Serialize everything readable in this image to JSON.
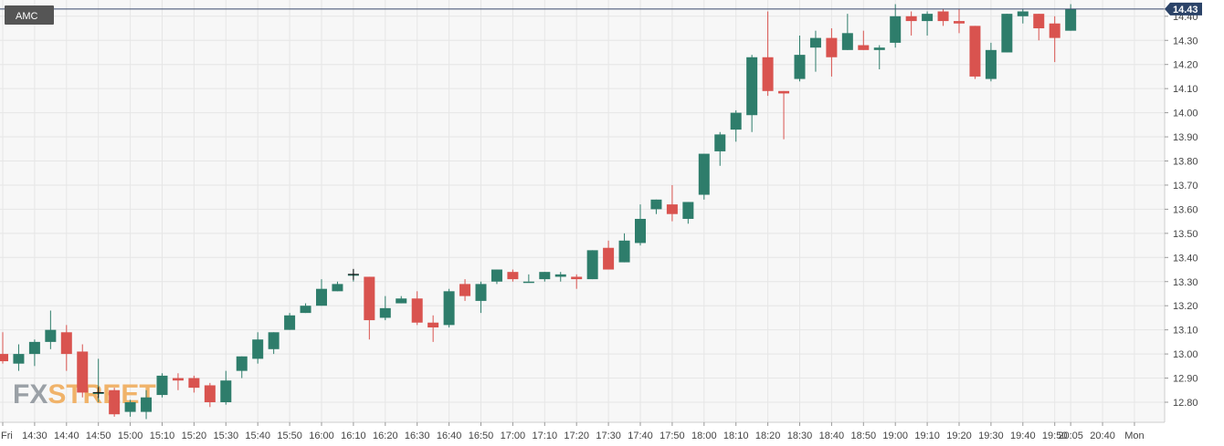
{
  "colors": {
    "up": "#2e7d6b",
    "down": "#d9534f",
    "grid": "#e6e6e6",
    "background": "#f7f7f7",
    "last_price_line": "#3a4a6b",
    "last_price_badge": "#2b4368",
    "symbol_badge": "#555555"
  },
  "watermark": {
    "part1": "FX",
    "part2": "STREET"
  },
  "chart_data": {
    "type": "candlestick",
    "symbol": "AMC",
    "last_price": 14.43,
    "last_price_label": "14.43",
    "ylim": [
      12.72,
      14.47
    ],
    "y_ticks": [
      {
        "value": 12.8,
        "label": "12.80"
      },
      {
        "value": 12.9,
        "label": "12.90"
      },
      {
        "value": 13.0,
        "label": "13.00"
      },
      {
        "value": 13.1,
        "label": "13.10"
      },
      {
        "value": 13.2,
        "label": "13.20"
      },
      {
        "value": 13.3,
        "label": "13.30"
      },
      {
        "value": 13.4,
        "label": "13.40"
      },
      {
        "value": 13.5,
        "label": "13.50"
      },
      {
        "value": 13.6,
        "label": "13.60"
      },
      {
        "value": 13.7,
        "label": "13.70"
      },
      {
        "value": 13.8,
        "label": "13.80"
      },
      {
        "value": 13.9,
        "label": "13.90"
      },
      {
        "value": 14.0,
        "label": "14.00"
      },
      {
        "value": 14.1,
        "label": "14.10"
      },
      {
        "value": 14.2,
        "label": "14.20"
      },
      {
        "value": 14.3,
        "label": "14.30"
      },
      {
        "value": 14.4,
        "label": "14.40"
      }
    ],
    "x_ticks": [
      {
        "slot": 0,
        "label": "Fri"
      },
      {
        "slot": 2,
        "label": "14:30"
      },
      {
        "slot": 4,
        "label": "14:40"
      },
      {
        "slot": 6,
        "label": "14:50"
      },
      {
        "slot": 8,
        "label": "15:00"
      },
      {
        "slot": 10,
        "label": "15:10"
      },
      {
        "slot": 12,
        "label": "15:20"
      },
      {
        "slot": 14,
        "label": "15:30"
      },
      {
        "slot": 16,
        "label": "15:40"
      },
      {
        "slot": 18,
        "label": "15:50"
      },
      {
        "slot": 20,
        "label": "16:00"
      },
      {
        "slot": 22,
        "label": "16:10"
      },
      {
        "slot": 24,
        "label": "16:20"
      },
      {
        "slot": 26,
        "label": "16:30"
      },
      {
        "slot": 28,
        "label": "16:40"
      },
      {
        "slot": 30,
        "label": "16:50"
      },
      {
        "slot": 32,
        "label": "17:00"
      },
      {
        "slot": 34,
        "label": "17:10"
      },
      {
        "slot": 36,
        "label": "17:20"
      },
      {
        "slot": 38,
        "label": "17:30"
      },
      {
        "slot": 40,
        "label": "17:40"
      },
      {
        "slot": 42,
        "label": "17:50"
      },
      {
        "slot": 44,
        "label": "18:00"
      },
      {
        "slot": 46,
        "label": "18:10"
      },
      {
        "slot": 48,
        "label": "18:20"
      },
      {
        "slot": 50,
        "label": "18:30"
      },
      {
        "slot": 52,
        "label": "18:40"
      },
      {
        "slot": 54,
        "label": "18:50"
      },
      {
        "slot": 56,
        "label": "19:00"
      },
      {
        "slot": 58,
        "label": "19:10"
      },
      {
        "slot": 60,
        "label": "19:20"
      },
      {
        "slot": 62,
        "label": "19:30"
      },
      {
        "slot": 64,
        "label": "19:40"
      },
      {
        "slot": 66,
        "label": "19:50"
      },
      {
        "slot": 67,
        "label": "20:05"
      },
      {
        "slot": 69,
        "label": "20:40"
      },
      {
        "slot": 71,
        "label": "Mon"
      }
    ],
    "candles": [
      {
        "slot": 0,
        "o": 13.0,
        "h": 13.09,
        "l": 12.96,
        "c": 12.97
      },
      {
        "slot": 1,
        "o": 12.96,
        "h": 13.04,
        "l": 12.93,
        "c": 13.0
      },
      {
        "slot": 2,
        "o": 13.0,
        "h": 13.06,
        "l": 12.95,
        "c": 13.05
      },
      {
        "slot": 3,
        "o": 13.05,
        "h": 13.18,
        "l": 13.02,
        "c": 13.1
      },
      {
        "slot": 4,
        "o": 13.09,
        "h": 13.12,
        "l": 12.93,
        "c": 13.0
      },
      {
        "slot": 5,
        "o": 13.01,
        "h": 13.04,
        "l": 12.82,
        "c": 12.84
      },
      {
        "slot": 6,
        "o": 12.84,
        "h": 12.98,
        "l": 12.8,
        "c": 12.84
      },
      {
        "slot": 7,
        "o": 12.85,
        "h": 12.86,
        "l": 12.74,
        "c": 12.75
      },
      {
        "slot": 8,
        "o": 12.76,
        "h": 12.81,
        "l": 12.74,
        "c": 12.8
      },
      {
        "slot": 9,
        "o": 12.76,
        "h": 12.85,
        "l": 12.73,
        "c": 12.82
      },
      {
        "slot": 10,
        "o": 12.83,
        "h": 12.92,
        "l": 12.82,
        "c": 12.91
      },
      {
        "slot": 11,
        "o": 12.9,
        "h": 12.92,
        "l": 12.85,
        "c": 12.89
      },
      {
        "slot": 12,
        "o": 12.9,
        "h": 12.91,
        "l": 12.84,
        "c": 12.86
      },
      {
        "slot": 13,
        "o": 12.87,
        "h": 12.88,
        "l": 12.78,
        "c": 12.8
      },
      {
        "slot": 14,
        "o": 12.8,
        "h": 12.93,
        "l": 12.79,
        "c": 12.89
      },
      {
        "slot": 15,
        "o": 12.93,
        "h": 12.99,
        "l": 12.9,
        "c": 12.99
      },
      {
        "slot": 16,
        "o": 12.98,
        "h": 13.09,
        "l": 12.96,
        "c": 13.06
      },
      {
        "slot": 17,
        "o": 13.02,
        "h": 13.09,
        "l": 13.0,
        "c": 13.09
      },
      {
        "slot": 18,
        "o": 13.1,
        "h": 13.17,
        "l": 13.1,
        "c": 13.16
      },
      {
        "slot": 19,
        "o": 13.17,
        "h": 13.21,
        "l": 13.17,
        "c": 13.2
      },
      {
        "slot": 20,
        "o": 13.2,
        "h": 13.31,
        "l": 13.2,
        "c": 13.27
      },
      {
        "slot": 21,
        "o": 13.26,
        "h": 13.3,
        "l": 13.26,
        "c": 13.29
      },
      {
        "slot": 22,
        "o": 13.33,
        "h": 13.35,
        "l": 13.3,
        "c": 13.33
      },
      {
        "slot": 23,
        "o": 13.32,
        "h": 13.32,
        "l": 13.06,
        "c": 13.14
      },
      {
        "slot": 24,
        "o": 13.15,
        "h": 13.24,
        "l": 13.14,
        "c": 13.19
      },
      {
        "slot": 25,
        "o": 13.21,
        "h": 13.24,
        "l": 13.21,
        "c": 13.23
      },
      {
        "slot": 26,
        "o": 13.23,
        "h": 13.26,
        "l": 13.12,
        "c": 13.13
      },
      {
        "slot": 27,
        "o": 13.13,
        "h": 13.16,
        "l": 13.05,
        "c": 13.11
      },
      {
        "slot": 28,
        "o": 13.12,
        "h": 13.27,
        "l": 13.11,
        "c": 13.26
      },
      {
        "slot": 29,
        "o": 13.29,
        "h": 13.31,
        "l": 13.22,
        "c": 13.24
      },
      {
        "slot": 30,
        "o": 13.22,
        "h": 13.3,
        "l": 13.17,
        "c": 13.29
      },
      {
        "slot": 31,
        "o": 13.3,
        "h": 13.35,
        "l": 13.29,
        "c": 13.35
      },
      {
        "slot": 32,
        "o": 13.34,
        "h": 13.35,
        "l": 13.3,
        "c": 13.31
      },
      {
        "slot": 33,
        "o": 13.3,
        "h": 13.33,
        "l": 13.3,
        "c": 13.3
      },
      {
        "slot": 34,
        "o": 13.31,
        "h": 13.34,
        "l": 13.3,
        "c": 13.34
      },
      {
        "slot": 35,
        "o": 13.32,
        "h": 13.34,
        "l": 13.3,
        "c": 13.33
      },
      {
        "slot": 36,
        "o": 13.32,
        "h": 13.33,
        "l": 13.27,
        "c": 13.31
      },
      {
        "slot": 37,
        "o": 13.31,
        "h": 13.43,
        "l": 13.31,
        "c": 13.43
      },
      {
        "slot": 38,
        "o": 13.44,
        "h": 13.47,
        "l": 13.35,
        "c": 13.35
      },
      {
        "slot": 39,
        "o": 13.38,
        "h": 13.5,
        "l": 13.38,
        "c": 13.47
      },
      {
        "slot": 40,
        "o": 13.46,
        "h": 13.62,
        "l": 13.45,
        "c": 13.56
      },
      {
        "slot": 41,
        "o": 13.6,
        "h": 13.64,
        "l": 13.58,
        "c": 13.64
      },
      {
        "slot": 42,
        "o": 13.62,
        "h": 13.7,
        "l": 13.55,
        "c": 13.58
      },
      {
        "slot": 43,
        "o": 13.56,
        "h": 13.63,
        "l": 13.54,
        "c": 13.63
      },
      {
        "slot": 44,
        "o": 13.66,
        "h": 13.83,
        "l": 13.64,
        "c": 13.83
      },
      {
        "slot": 45,
        "o": 13.84,
        "h": 13.92,
        "l": 13.78,
        "c": 13.91
      },
      {
        "slot": 46,
        "o": 13.93,
        "h": 14.01,
        "l": 13.88,
        "c": 14.0
      },
      {
        "slot": 47,
        "o": 13.99,
        "h": 14.24,
        "l": 13.92,
        "c": 14.23
      },
      {
        "slot": 48,
        "o": 14.23,
        "h": 14.42,
        "l": 14.07,
        "c": 14.09
      },
      {
        "slot": 49,
        "o": 14.09,
        "h": 14.09,
        "l": 13.89,
        "c": 14.08
      },
      {
        "slot": 50,
        "o": 14.14,
        "h": 14.32,
        "l": 14.13,
        "c": 14.24
      },
      {
        "slot": 51,
        "o": 14.27,
        "h": 14.34,
        "l": 14.17,
        "c": 14.31
      },
      {
        "slot": 52,
        "o": 14.31,
        "h": 14.35,
        "l": 14.15,
        "c": 14.23
      },
      {
        "slot": 53,
        "o": 14.26,
        "h": 14.41,
        "l": 14.26,
        "c": 14.33
      },
      {
        "slot": 54,
        "o": 14.28,
        "h": 14.34,
        "l": 14.26,
        "c": 14.26
      },
      {
        "slot": 55,
        "o": 14.26,
        "h": 14.28,
        "l": 14.18,
        "c": 14.27
      },
      {
        "slot": 56,
        "o": 14.29,
        "h": 14.45,
        "l": 14.27,
        "c": 14.4
      },
      {
        "slot": 57,
        "o": 14.4,
        "h": 14.42,
        "l": 14.32,
        "c": 14.38
      },
      {
        "slot": 58,
        "o": 14.38,
        "h": 14.42,
        "l": 14.32,
        "c": 14.41
      },
      {
        "slot": 59,
        "o": 14.42,
        "h": 14.43,
        "l": 14.36,
        "c": 14.38
      },
      {
        "slot": 60,
        "o": 14.38,
        "h": 14.43,
        "l": 14.33,
        "c": 14.37
      },
      {
        "slot": 61,
        "o": 14.36,
        "h": 14.36,
        "l": 14.14,
        "c": 14.15
      },
      {
        "slot": 62,
        "o": 14.14,
        "h": 14.29,
        "l": 14.13,
        "c": 14.26
      },
      {
        "slot": 63,
        "o": 14.25,
        "h": 14.41,
        "l": 14.25,
        "c": 14.41
      },
      {
        "slot": 64,
        "o": 14.4,
        "h": 14.43,
        "l": 14.37,
        "c": 14.42
      },
      {
        "slot": 65,
        "o": 14.41,
        "h": 14.41,
        "l": 14.3,
        "c": 14.35
      },
      {
        "slot": 66,
        "o": 14.37,
        "h": 14.4,
        "l": 14.21,
        "c": 14.31
      },
      {
        "slot": 67,
        "o": 14.34,
        "h": 14.45,
        "l": 14.34,
        "c": 14.43
      }
    ],
    "crosshair_marks": [
      {
        "slot": 6,
        "value": 12.84
      },
      {
        "slot": 22,
        "value": 13.33
      }
    ],
    "grid": true
  }
}
